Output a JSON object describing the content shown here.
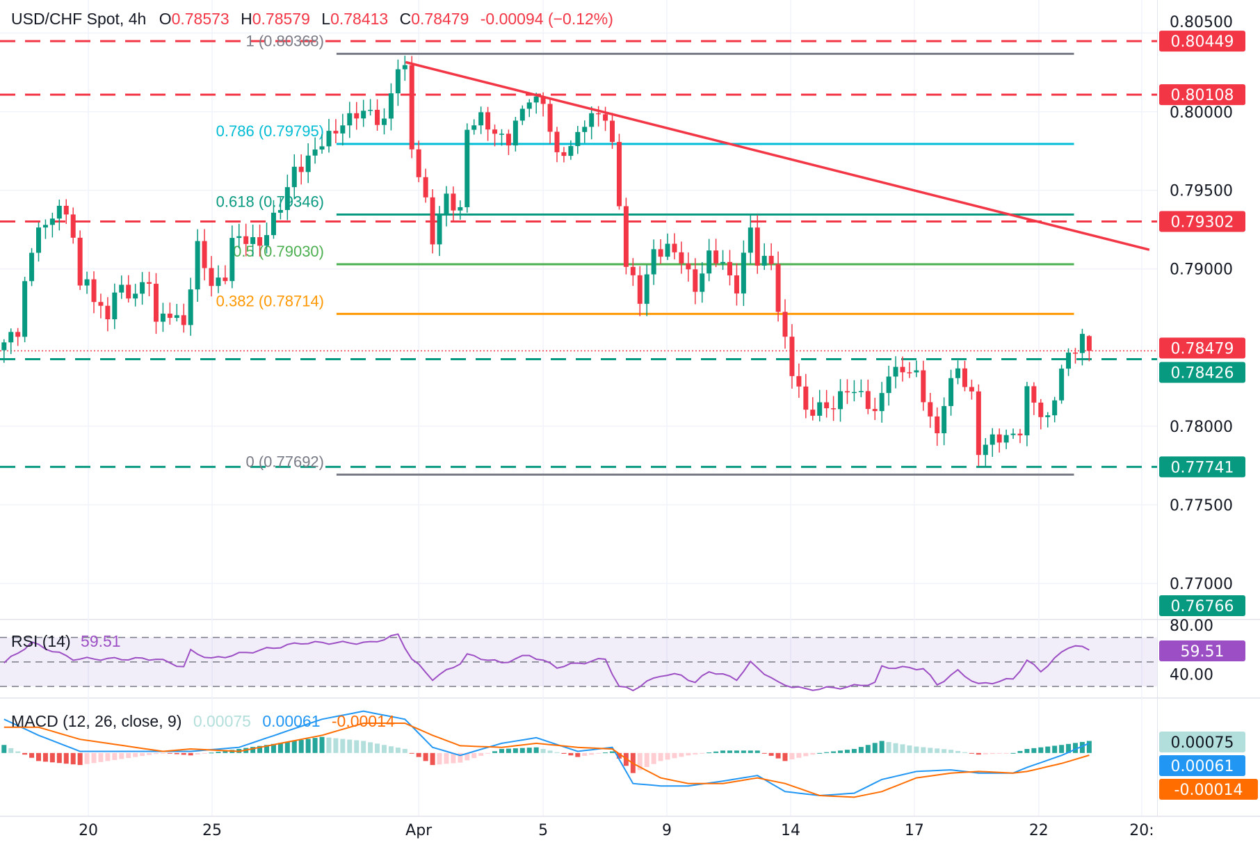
{
  "header": {
    "symbol": "USD/CHF Spot, 4h",
    "o_label": "O",
    "open": "0.78573",
    "h_label": "H",
    "high": "0.78579",
    "l_label": "L",
    "low": "0.78413",
    "c_label": "C",
    "close": "0.78479",
    "change": "-0.00094 (−0.12%)"
  },
  "colors": {
    "up": "#089981",
    "down": "#f23645",
    "rsi": "#9c4fc4",
    "macd": "#2196f3",
    "signal": "#ff6d00",
    "hist_pos": "#26a69a",
    "hist_pos_light": "#b2dfdb",
    "hist_neg": "#ef5350",
    "hist_neg_light": "#ffcdd2",
    "grid": "#f0f3fa"
  },
  "chart_data": [
    {
      "type": "candlestick",
      "title": "USD/CHF Spot, 4h",
      "ylim": [
        0.7655,
        0.8058
      ],
      "y_ticks": [
        "0.80500",
        "0.80000",
        "0.79500",
        "0.79000",
        "0.78000",
        "0.77500",
        "0.77000"
      ],
      "y_tick_values": [
        0.805,
        0.8,
        0.795,
        0.79,
        0.78,
        0.775,
        0.77
      ],
      "x_ticks": [
        {
          "label": "20",
          "bar": 12.2
        },
        {
          "label": "25",
          "bar": 30.1
        },
        {
          "label": "Apr",
          "bar": 60
        },
        {
          "label": "5",
          "bar": 78
        },
        {
          "label": "9",
          "bar": 95.9
        },
        {
          "label": "14",
          "bar": 113.8
        },
        {
          "label": "17",
          "bar": 131.7
        },
        {
          "label": "22",
          "bar": 149.7
        },
        {
          "label": "20:",
          "bar": 164.6
        }
      ],
      "close_path": [
        [
          0,
          0.78513
        ],
        [
          2,
          0.78615
        ],
        [
          3,
          0.78922
        ],
        [
          5,
          0.7928
        ],
        [
          6,
          0.79228
        ],
        [
          8,
          0.79433
        ],
        [
          10,
          0.79228
        ],
        [
          11,
          0.78871
        ],
        [
          12,
          0.78896
        ],
        [
          15,
          0.78692
        ],
        [
          16,
          0.78871
        ],
        [
          18,
          0.78819
        ],
        [
          21,
          0.78947
        ],
        [
          22,
          0.78641
        ],
        [
          24,
          0.78717
        ],
        [
          26,
          0.78666
        ],
        [
          28,
          0.79126
        ],
        [
          30,
          0.78896
        ],
        [
          32,
          0.78973
        ],
        [
          33,
          0.79177
        ],
        [
          37,
          0.79177
        ],
        [
          40,
          0.79382
        ],
        [
          42,
          0.79637
        ],
        [
          45,
          0.79739
        ],
        [
          47,
          0.79842
        ],
        [
          49,
          0.79944
        ],
        [
          53,
          0.79995
        ],
        [
          55,
          0.79944
        ],
        [
          57,
          0.80276
        ],
        [
          58,
          0.8025
        ],
        [
          59,
          0.7979
        ],
        [
          61,
          0.79433
        ],
        [
          62,
          0.79177
        ],
        [
          64,
          0.79458
        ],
        [
          66,
          0.79382
        ],
        [
          67,
          0.79893
        ],
        [
          69,
          0.79944
        ],
        [
          73,
          0.79816
        ],
        [
          75,
          0.79995
        ],
        [
          76,
          0.80097
        ],
        [
          78,
          0.80072
        ],
        [
          80,
          0.79688
        ],
        [
          82,
          0.7979
        ],
        [
          84,
          0.79944
        ],
        [
          87,
          0.79969
        ],
        [
          88,
          0.7979
        ],
        [
          89,
          0.79433
        ],
        [
          90,
          0.79024
        ],
        [
          92,
          0.78794
        ],
        [
          94,
          0.79126
        ],
        [
          96,
          0.79126
        ],
        [
          98,
          0.79049
        ],
        [
          100,
          0.78896
        ],
        [
          102,
          0.79075
        ],
        [
          104,
          0.79024
        ],
        [
          106,
          0.78896
        ],
        [
          108,
          0.79254
        ],
        [
          109,
          0.79024
        ],
        [
          111,
          0.79075
        ],
        [
          112,
          0.78743
        ],
        [
          114,
          0.78334
        ],
        [
          116,
          0.78104
        ],
        [
          118,
          0.7813
        ],
        [
          120,
          0.78104
        ],
        [
          122,
          0.78257
        ],
        [
          124,
          0.78206
        ],
        [
          126,
          0.78053
        ],
        [
          128,
          0.7836
        ],
        [
          130,
          0.7836
        ],
        [
          132,
          0.78308
        ],
        [
          135,
          0.77951
        ],
        [
          136,
          0.78155
        ],
        [
          138,
          0.7836
        ],
        [
          140,
          0.78206
        ],
        [
          141,
          0.77848
        ],
        [
          144,
          0.77925
        ],
        [
          147,
          0.77976
        ],
        [
          148,
          0.78206
        ],
        [
          150,
          0.78078
        ],
        [
          151,
          0.78053
        ],
        [
          153,
          0.7836
        ],
        [
          155,
          0.78487
        ],
        [
          156,
          0.78573
        ]
      ],
      "last_bar": {
        "open": 0.78573,
        "high": 0.78579,
        "low": 0.78413,
        "close": 0.78479
      },
      "fibonacci": [
        {
          "label": "1 (0.80368)",
          "value": 0.80368,
          "color": "#787b86"
        },
        {
          "label": "0.786 (0.79795)",
          "value": 0.79795,
          "color": "#00bcd4"
        },
        {
          "label": "0.618 (0.79346)",
          "value": 0.79346,
          "color": "#089981"
        },
        {
          "label": "0.5 (0.79030)",
          "value": 0.7903,
          "color": "#4caf50"
        },
        {
          "label": "0.382 (0.78714)",
          "value": 0.78714,
          "color": "#ff9800"
        },
        {
          "label": "0 (0.77692)",
          "value": 0.77692,
          "color": "#787b86"
        }
      ],
      "fib_range_bars": [
        48.1,
        154.8
      ],
      "horizontal_levels": [
        {
          "value": 0.80449,
          "label": "0.80449",
          "color": "#f23645",
          "style": "dashed"
        },
        {
          "value": 0.80108,
          "label": "0.80108",
          "color": "#f23645",
          "style": "dashed"
        },
        {
          "value": 0.79302,
          "label": "0.79302",
          "color": "#f23645",
          "style": "dashed"
        },
        {
          "value": 0.78479,
          "label": "0.78479",
          "color": "#f23645",
          "style": "dotted"
        },
        {
          "value": 0.78426,
          "label": "0.78426",
          "color": "#089981",
          "style": "dashed"
        },
        {
          "value": 0.77741,
          "label": "0.77741",
          "color": "#089981",
          "style": "dashed"
        }
      ],
      "extra_badge": {
        "value": 0.76766,
        "label": "0.76766",
        "color": "#089981"
      },
      "trendline": {
        "from": [
          58.1,
          0.80315
        ],
        "to": [
          165.7,
          0.79122
        ],
        "color": "#f23645"
      }
    },
    {
      "type": "line",
      "title": "RSI (14)",
      "value_label": "59.51",
      "y_ticks": [
        "80.00",
        "40.00"
      ],
      "y_tick_values": [
        80,
        40
      ],
      "bands": [
        70,
        50,
        30
      ],
      "series": [
        {
          "path": [
            [
              0,
              49.2
            ],
            [
              4,
              65.6
            ],
            [
              10,
              52.5
            ],
            [
              22,
              52.5
            ],
            [
              26,
              45.9
            ],
            [
              27,
              59
            ],
            [
              30,
              52.5
            ],
            [
              43,
              65.6
            ],
            [
              53,
              65.6
            ],
            [
              57,
              72.1
            ],
            [
              59,
              52.5
            ],
            [
              62,
              36.1
            ],
            [
              66,
              49.2
            ],
            [
              67,
              55.7
            ],
            [
              72,
              49.2
            ],
            [
              76,
              55.7
            ],
            [
              80,
              45.9
            ],
            [
              87,
              52.5
            ],
            [
              89,
              29.5
            ],
            [
              91,
              27.5
            ],
            [
              95,
              39.3
            ],
            [
              98,
              39.3
            ],
            [
              100,
              32.8
            ],
            [
              102,
              42.6
            ],
            [
              106,
              36.1
            ],
            [
              108,
              49.2
            ],
            [
              112,
              32.8
            ],
            [
              116,
              27.5
            ],
            [
              122,
              29.5
            ],
            [
              126,
              32.8
            ],
            [
              127,
              45.9
            ],
            [
              133,
              44.6
            ],
            [
              135,
              31.5
            ],
            [
              138,
              42.6
            ],
            [
              141,
              31.5
            ],
            [
              146,
              36.1
            ],
            [
              148,
              51.1
            ],
            [
              150,
              42.6
            ],
            [
              154,
              62.3
            ],
            [
              155,
              63.6
            ],
            [
              157,
              59.51
            ]
          ]
        }
      ]
    },
    {
      "type": "line",
      "title": "MACD (12, 26, close, 9)",
      "values_label": {
        "histogram": "0.00075",
        "macd": "0.00061",
        "signal": "-0.00014"
      },
      "series": [
        {
          "name": "MACD",
          "path": [
            [
              0,
              0.0021
            ],
            [
              5,
              0.0011
            ],
            [
              11,
              0.0001
            ],
            [
              23,
              0.0001
            ],
            [
              27,
              0.0001
            ],
            [
              34,
              0.00035
            ],
            [
              46,
              0.0021
            ],
            [
              52,
              0.0026
            ],
            [
              58,
              0.0021
            ],
            [
              62,
              0.00035
            ],
            [
              66,
              -0.00015
            ],
            [
              72,
              0.0006
            ],
            [
              77,
              0.00095
            ],
            [
              83,
              0.0001
            ],
            [
              88,
              0.00035
            ],
            [
              91,
              -0.0019
            ],
            [
              95,
              -0.00205
            ],
            [
              99,
              -0.00205
            ],
            [
              104,
              -0.00175
            ],
            [
              109,
              -0.0014
            ],
            [
              113,
              -0.0024
            ],
            [
              118,
              -0.00265
            ],
            [
              123,
              -0.0025
            ],
            [
              127,
              -0.00165
            ],
            [
              132,
              -0.00115
            ],
            [
              137,
              -0.00105
            ],
            [
              141,
              -0.00125
            ],
            [
              146,
              -0.00125
            ],
            [
              148,
              -0.0009
            ],
            [
              153,
              -0.00015
            ],
            [
              157,
              0.00061
            ]
          ]
        },
        {
          "name": "Signal",
          "path": [
            [
              0,
              0.0016
            ],
            [
              5,
              0.0016
            ],
            [
              11,
              0.00085
            ],
            [
              23,
              0.0001
            ],
            [
              27,
              0.00025
            ],
            [
              34,
              0.0001
            ],
            [
              46,
              0.0011
            ],
            [
              52,
              0.00185
            ],
            [
              58,
              0.00185
            ],
            [
              62,
              0.0011
            ],
            [
              66,
              0.00045
            ],
            [
              72,
              0.00035
            ],
            [
              77,
              0.0006
            ],
            [
              83,
              0.00035
            ],
            [
              88,
              0.00025
            ],
            [
              91,
              -0.00065
            ],
            [
              95,
              -0.00155
            ],
            [
              99,
              -0.0019
            ],
            [
              104,
              -0.0019
            ],
            [
              109,
              -0.00155
            ],
            [
              113,
              -0.0019
            ],
            [
              118,
              -0.00265
            ],
            [
              123,
              -0.00275
            ],
            [
              127,
              -0.0024
            ],
            [
              132,
              -0.00155
            ],
            [
              137,
              -0.00125
            ],
            [
              141,
              -0.00115
            ],
            [
              146,
              -0.00125
            ],
            [
              148,
              -0.00115
            ],
            [
              153,
              -0.00065
            ],
            [
              157,
              -0.00014
            ]
          ]
        }
      ]
    }
  ]
}
